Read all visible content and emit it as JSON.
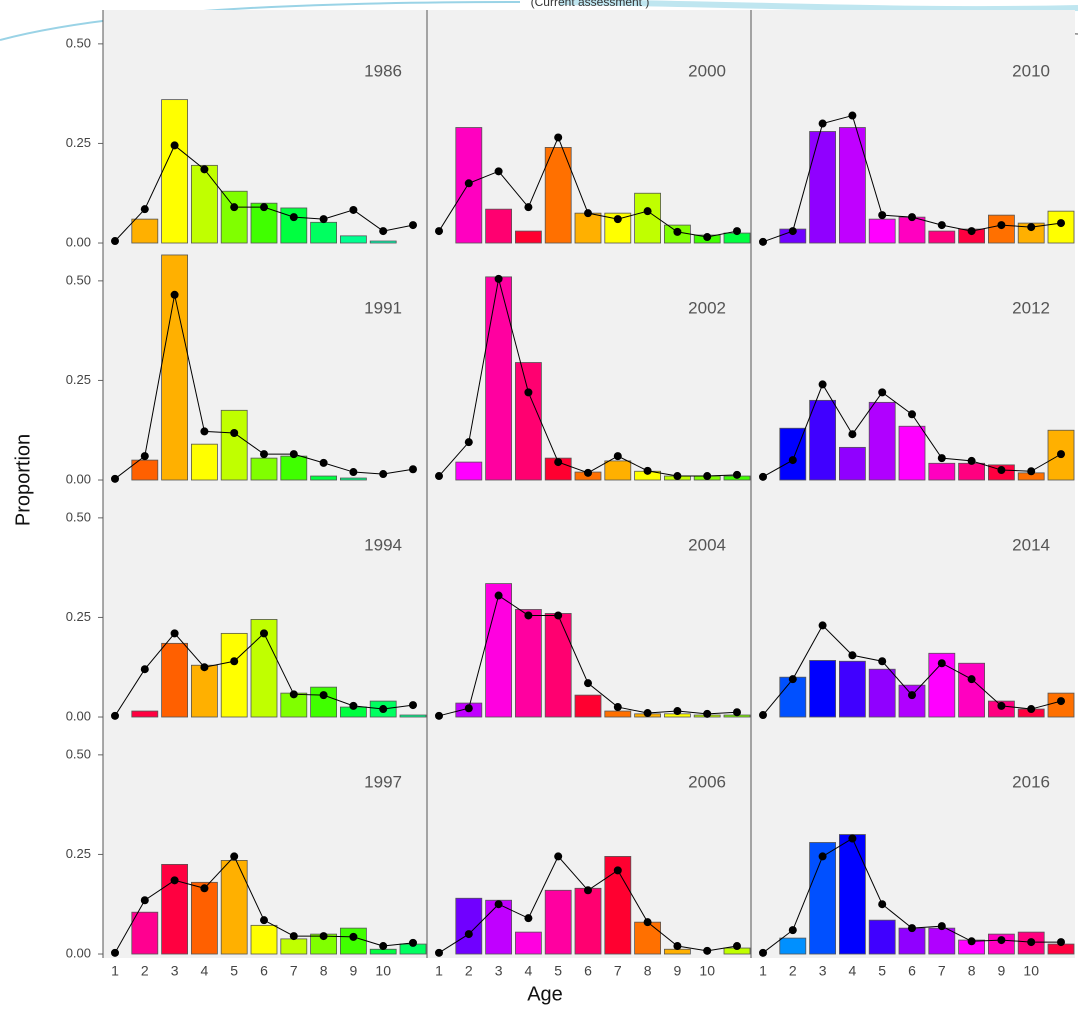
{
  "chart_data": {
    "type": "bar",
    "title": "(Current assessment )",
    "x_label": "Age",
    "y_label": "Proportion",
    "categories": [
      "1",
      "2",
      "3",
      "4",
      "5",
      "6",
      "7",
      "8",
      "9",
      "10",
      null
    ],
    "ylim": [
      -0.01,
      0.585
    ],
    "yticks": [
      {
        "value": 0,
        "label": "0.00"
      },
      {
        "value": 0.25,
        "label": "0.25"
      },
      {
        "value": 0.5,
        "label": "0.50"
      }
    ],
    "grid": false,
    "panels": [
      {
        "label": "1986",
        "values": [
          0,
          0.06,
          0.36,
          0.195,
          0.13,
          0.1,
          0.088,
          0.052,
          0.018,
          0.005,
          0
        ],
        "colors": [
          "#FF3000",
          "#FFB000",
          "#FFFF00",
          "#C0FF00",
          "#80FF00",
          "#40FF00",
          "#00FF40",
          "#00FF60",
          "#00FF90",
          "#00FFB0",
          "#00FFD0"
        ],
        "line": {
          "values": [
            0.005,
            0.085,
            0.245,
            0.185,
            0.09,
            0.09,
            0.065,
            0.06,
            0.083,
            0.03,
            0.045
          ],
          "color": "#000000"
        }
      },
      {
        "label": "1991",
        "values": [
          0,
          0.05,
          0.565,
          0.09,
          0.175,
          0.055,
          0.06,
          0.01,
          0.005,
          0,
          0
        ],
        "colors": [
          "#FF0040",
          "#FF6000",
          "#FFB000",
          "#FFFF00",
          "#C0FF00",
          "#80FF00",
          "#40FF00",
          "#00FF40",
          "#00FF80",
          "#00FFA0",
          "#00FFC0"
        ],
        "line": {
          "values": [
            0.003,
            0.06,
            0.465,
            0.122,
            0.118,
            0.065,
            0.065,
            0.043,
            0.02,
            0.015,
            0.027
          ],
          "color": "#000000"
        }
      },
      {
        "label": "1994",
        "values": [
          0,
          0.015,
          0.185,
          0.13,
          0.21,
          0.245,
          0.06,
          0.075,
          0.025,
          0.04,
          0.005
        ],
        "colors": [
          "#FF0090",
          "#FF0040",
          "#FF6000",
          "#FFB000",
          "#FFFF00",
          "#C0FF00",
          "#80FF00",
          "#40FF00",
          "#00FF40",
          "#00FF60",
          "#00FF90"
        ],
        "line": {
          "values": [
            0.003,
            0.12,
            0.21,
            0.125,
            0.14,
            0.21,
            0.057,
            0.055,
            0.028,
            0.02,
            0.03
          ],
          "color": "#000000"
        }
      },
      {
        "label": "1997",
        "values": [
          0,
          0.105,
          0.225,
          0.18,
          0.235,
          0.072,
          0.038,
          0.05,
          0.065,
          0.012,
          0.025
        ],
        "colors": [
          "#FF00C0",
          "#FF0090",
          "#FF0040",
          "#FF6000",
          "#FFB000",
          "#FFFF00",
          "#C0FF00",
          "#80FF00",
          "#40FF00",
          "#00FF40",
          "#00FF60"
        ],
        "line": {
          "values": [
            0.003,
            0.135,
            0.185,
            0.165,
            0.245,
            0.085,
            0.045,
            0.045,
            0.043,
            0.02,
            0.028
          ],
          "color": "#000000"
        }
      },
      {
        "label": "2000",
        "values": [
          0,
          0.29,
          0.085,
          0.03,
          0.24,
          0.075,
          0.075,
          0.125,
          0.045,
          0.02,
          0.025
        ],
        "colors": [
          "#FF00FF",
          "#FF00C0",
          "#FF0070",
          "#FF0030",
          "#FF7000",
          "#FFB000",
          "#FFFF00",
          "#C0FF00",
          "#80FF00",
          "#40FF00",
          "#00FF40"
        ],
        "line": {
          "values": [
            0.03,
            0.15,
            0.18,
            0.09,
            0.265,
            0.075,
            0.06,
            0.08,
            0.028,
            0.015,
            0.03
          ],
          "color": "#000000"
        }
      },
      {
        "label": "2002",
        "values": [
          0,
          0.045,
          0.51,
          0.295,
          0.055,
          0.02,
          0.048,
          0.022,
          0.01,
          0.01,
          0.01
        ],
        "colors": [
          "#C000FF",
          "#FF00FF",
          "#FF00A0",
          "#FF0070",
          "#FF0030",
          "#FF7000",
          "#FFB000",
          "#FFFF00",
          "#C0FF00",
          "#80FF00",
          "#40FF00"
        ],
        "line": {
          "values": [
            0.01,
            0.095,
            0.505,
            0.22,
            0.045,
            0.018,
            0.06,
            0.023,
            0.01,
            0.01,
            0.013
          ],
          "color": "#000000"
        }
      },
      {
        "label": "2004",
        "values": [
          0,
          0.035,
          0.335,
          0.27,
          0.26,
          0.055,
          0.015,
          0.008,
          0.008,
          0.005,
          0.005
        ],
        "colors": [
          "#9000FF",
          "#C000FF",
          "#FF00E0",
          "#FF00A0",
          "#FF0070",
          "#FF0030",
          "#FF7000",
          "#FFB000",
          "#FFFF00",
          "#C0FF00",
          "#80FF00"
        ],
        "line": {
          "values": [
            0.003,
            0.022,
            0.305,
            0.255,
            0.255,
            0.085,
            0.025,
            0.01,
            0.015,
            0.008,
            0.012
          ],
          "color": "#000000"
        }
      },
      {
        "label": "2006",
        "values": [
          0,
          0.14,
          0.135,
          0.055,
          0.16,
          0.165,
          0.245,
          0.08,
          0.012,
          0,
          0.015
        ],
        "colors": [
          "#4000FF",
          "#7000FF",
          "#C000FF",
          "#FF00E0",
          "#FF00A0",
          "#FF0070",
          "#FF0030",
          "#FF7000",
          "#FFB000",
          "#FFFF00",
          "#C0FF00"
        ],
        "line": {
          "values": [
            0.003,
            0.05,
            0.125,
            0.09,
            0.245,
            0.16,
            0.21,
            0.08,
            0.02,
            0.008,
            0.02
          ],
          "color": "#000000"
        }
      },
      {
        "label": "2010",
        "values": [
          0,
          0.035,
          0.28,
          0.29,
          0.06,
          0.065,
          0.03,
          0.035,
          0.07,
          0.05,
          0.08
        ],
        "colors": [
          "#4000FF",
          "#7000FF",
          "#9000FF",
          "#C000FF",
          "#FF00FF",
          "#FF00C0",
          "#FF0080",
          "#FF0040",
          "#FF7000",
          "#FFB000",
          "#FFFF00"
        ],
        "line": {
          "values": [
            0.003,
            0.03,
            0.3,
            0.32,
            0.07,
            0.065,
            0.045,
            0.03,
            0.045,
            0.04,
            0.05
          ],
          "color": "#000000"
        }
      },
      {
        "label": "2012",
        "values": [
          0,
          0.13,
          0.2,
          0.082,
          0.195,
          0.135,
          0.042,
          0.042,
          0.038,
          0.018,
          0.125
        ],
        "colors": [
          "#0040FF",
          "#0000FF",
          "#4000FF",
          "#9000FF",
          "#B000FF",
          "#FF00FF",
          "#FF00C0",
          "#FF0080",
          "#FF0040",
          "#FF7000",
          "#FFB000"
        ],
        "line": {
          "values": [
            0.008,
            0.05,
            0.24,
            0.115,
            0.22,
            0.165,
            0.055,
            0.048,
            0.025,
            0.022,
            0.065
          ],
          "color": "#000000"
        }
      },
      {
        "label": "2014",
        "values": [
          0,
          0.1,
          0.142,
          0.14,
          0.12,
          0.08,
          0.16,
          0.135,
          0.04,
          0.02,
          0.06
        ],
        "colors": [
          "#0090FF",
          "#0050FF",
          "#0000FF",
          "#4000FF",
          "#9000FF",
          "#B000FF",
          "#FF00FF",
          "#FF00C0",
          "#FF0080",
          "#FF0040",
          "#FF7000"
        ],
        "line": {
          "values": [
            0.005,
            0.095,
            0.23,
            0.155,
            0.14,
            0.055,
            0.135,
            0.095,
            0.028,
            0.02,
            0.04
          ],
          "color": "#000000"
        }
      },
      {
        "label": "2016",
        "values": [
          0,
          0.04,
          0.28,
          0.3,
          0.085,
          0.065,
          0.065,
          0.035,
          0.05,
          0.055,
          0.025
        ],
        "colors": [
          "#00C0FF",
          "#0090FF",
          "#0050FF",
          "#0000FF",
          "#4000FF",
          "#9000FF",
          "#B000FF",
          "#FF00FF",
          "#FF00C0",
          "#FF0080",
          "#FF0040"
        ],
        "line": {
          "values": [
            0.003,
            0.06,
            0.245,
            0.29,
            0.125,
            0.065,
            0.07,
            0.032,
            0.035,
            0.03,
            0.03
          ],
          "color": "#000000"
        }
      }
    ]
  }
}
